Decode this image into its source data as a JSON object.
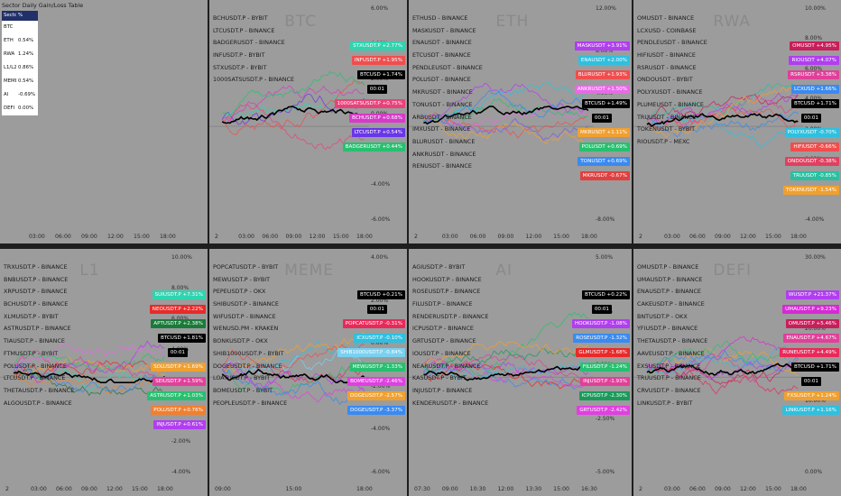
{
  "table": {
    "title": "Sector Daily Gain/Loss Table",
    "headers": [
      "Sector",
      "% Change"
    ],
    "rows": [
      {
        "sector": "BTC",
        "change": ""
      },
      {
        "sector": "ETH",
        "change": "0.54%"
      },
      {
        "sector": "RWA",
        "change": "1.24%"
      },
      {
        "sector": "L1/L2",
        "change": "0.86%"
      },
      {
        "sector": "MEME",
        "change": "0.54%"
      },
      {
        "sector": "AI",
        "change": "-0.69%"
      },
      {
        "sector": "DEFI",
        "change": "0.00%"
      }
    ]
  },
  "left_time_axis": [
    "03:00",
    "06:00",
    "09:00",
    "12:00",
    "15:00",
    "18:00"
  ],
  "panels": [
    {
      "id": "btc",
      "watermark": "BTC",
      "symbols": [
        "BCHUSDT.P - BYBIT",
        "LTCUSDT.P - BINANCE",
        "BADGERUSDT - BINANCE",
        "INFUSDT.P - BYBIT",
        "STXUSDT.P - BYBIT",
        "1000SATSUSDT.P - BINANCE"
      ],
      "yticks": [
        "6.00%",
        "4.00%",
        "2.00%",
        "0.00%",
        "-2.00%",
        "-4.00%",
        "-6.00%"
      ],
      "xticks": [
        "2",
        "03:00",
        "06:00",
        "09:00",
        "12:00",
        "15:00",
        "18:00"
      ],
      "badges": [
        {
          "label": "STXUSDT.P",
          "value": "+2.77%",
          "color": "#2fd4b0"
        },
        {
          "label": "INFUSDT.P",
          "value": "+1.95%",
          "color": "#f04e4e"
        },
        {
          "label": "BTCUSD",
          "value": "+1.74%",
          "color": "#000000"
        },
        {
          "label": "",
          "value": "00:01",
          "color": "#000000"
        },
        {
          "label": "1000SATSUSDT.P",
          "value": "+0.75%",
          "color": "#e8427a"
        },
        {
          "label": "BCHUSDT.P",
          "value": "+0.68%",
          "color": "#d63ac8"
        },
        {
          "label": "LTCUSDT.P",
          "value": "+0.54%",
          "color": "#6a36e8"
        },
        {
          "label": "BADGERUSDT",
          "value": "+0.44%",
          "color": "#28c070"
        }
      ],
      "colors": [
        "#2fd4b0",
        "#f04e4e",
        "#e8427a",
        "#d63ac8",
        "#6a36e8",
        "#28c070"
      ]
    },
    {
      "id": "eth",
      "watermark": "ETH",
      "symbols": [
        "ETHUSD - BINANCE",
        "MASKUSDT - BINANCE",
        "ENAUSDT - BINANCE",
        "ETCUSDT - BINANCE",
        "PENDLEUSDT - BINANCE",
        "POLUSDT - BINANCE",
        "MKRUSDT - BINANCE",
        "TONUSDT - BINANCE",
        "ARBUSDT - BINANCE",
        "IMXUSDT - BINANCE",
        "BLURUSDT - BINANCE",
        "ANKRUSDT - BINANCE",
        "RENUSDT - BINANCE"
      ],
      "yticks": [
        "12.00%",
        "8.00%",
        "4.00%",
        "0.00%",
        "-4.00%",
        "-8.00%"
      ],
      "xticks": [
        "2",
        "03:00",
        "06:00",
        "09:00",
        "12:00",
        "15:00",
        "18:00"
      ],
      "badges": [
        {
          "label": "MASKUSDT",
          "value": "+3.91%",
          "color": "#b13ef0"
        },
        {
          "label": "ENAUSDT",
          "value": "+2.00%",
          "color": "#2ec0e0"
        },
        {
          "label": "BLURUSDT",
          "value": "+1.93%",
          "color": "#f04e4e"
        },
        {
          "label": "ANKRUSDT",
          "value": "+1.50%",
          "color": "#e86ae8"
        },
        {
          "label": "BTCUSD",
          "value": "+1.49%",
          "color": "#000000"
        },
        {
          "label": "",
          "value": "00:01",
          "color": "#000000"
        },
        {
          "label": "MKRUSDT",
          "value": "+1.11%",
          "color": "#f0a030"
        },
        {
          "label": "POLUSDT",
          "value": "+0.69%",
          "color": "#28c070"
        },
        {
          "label": "TONUSDT",
          "value": "+0.69%",
          "color": "#3a8af0"
        },
        {
          "label": "MKRUSDT",
          "value": "-0.67%",
          "color": "#e04040"
        }
      ],
      "colors": [
        "#b13ef0",
        "#2ec0e0",
        "#f04e4e",
        "#e86ae8",
        "#f0a030",
        "#28c070",
        "#3a8af0",
        "#7a5af0"
      ]
    },
    {
      "id": "rwa",
      "watermark": "RWA",
      "symbols": [
        "OMUSDT - BINANCE",
        "LCXUSD - COINBASE",
        "PENDLEUSDT - BINANCE",
        "HIFIUSDT - BINANCE",
        "RSRUSDT - BINANCE",
        "ONDOUSDT - BYBIT",
        "POLYXUSDT - BINANCE",
        "PLUMEUSDT - BINANCE",
        "TRUUSDT - BINANCE",
        "TOKENUSDT - BYBIT",
        "RIOUSDT.P - MEXC"
      ],
      "yticks": [
        "10.00%",
        "8.00%",
        "6.00%",
        "4.00%",
        "2.00%",
        "0.00%",
        "-2.00%",
        "-4.00%"
      ],
      "xticks": [
        "2",
        "03:00",
        "06:00",
        "09:00",
        "12:00",
        "15:00",
        "18:00"
      ],
      "badges": [
        {
          "label": "OMUSDT",
          "value": "+4.95%",
          "color": "#c81e5a"
        },
        {
          "label": "RIOUSDT",
          "value": "+4.07%",
          "color": "#b13ef0"
        },
        {
          "label": "RSRUSDT",
          "value": "+3.38%",
          "color": "#e0409a"
        },
        {
          "label": "LCXUSD",
          "value": "+1.66%",
          "color": "#3a8af0"
        },
        {
          "label": "BTCUSD",
          "value": "+1.71%",
          "color": "#000000"
        },
        {
          "label": "",
          "value": "00:01",
          "color": "#000000"
        },
        {
          "label": "POLYXUSDT",
          "value": "-0.70%",
          "color": "#2ec0e0"
        },
        {
          "label": "HIFIUSDT",
          "value": "-0.66%",
          "color": "#f04e4e"
        },
        {
          "label": "ONDOUSDT",
          "value": "-0.38%",
          "color": "#e04060"
        },
        {
          "label": "TRUUSDT",
          "value": "-0.85%",
          "color": "#28c0a0"
        },
        {
          "label": "TOKENUSDT",
          "value": "-1.54%",
          "color": "#f0a030"
        }
      ],
      "colors": [
        "#c81e5a",
        "#b13ef0",
        "#e0409a",
        "#3a8af0",
        "#2ec0e0",
        "#f04e4e",
        "#28c0a0",
        "#f0a030"
      ]
    },
    {
      "id": "l1",
      "watermark": "L1",
      "symbols": [
        "TRXUSDT.P - BINANCE",
        "BNBUSDT.P - BINANCE",
        "XRPUSDT.P - BINANCE",
        "BCHUSDT.P - BINANCE",
        "XLMUSDT.P - BYBIT",
        "ASTRUSDT.P - BINANCE",
        "TIAUSDT.P - BINANCE",
        "FTMUSDT.P - BYBIT",
        "POLUSDT.P - BINANCE",
        "LTCUSDT.P - BINANCE",
        "THETAUSDT.P - BINANCE",
        "ALGOUSDT.P - BINANCE"
      ],
      "yticks": [
        "10.00%",
        "8.00%",
        "6.00%",
        "4.00%",
        "2.00%",
        "0.00%",
        "-2.00%",
        "-4.00%"
      ],
      "xticks": [
        "2",
        "03:00",
        "06:00",
        "09:00",
        "12:00",
        "15:00",
        "18:00"
      ],
      "badges": [
        {
          "label": "SUIUSDT.P",
          "value": "+7.31%",
          "color": "#2fd4b0"
        },
        {
          "label": "NEOUSDT.P",
          "value": "+2.22%",
          "color": "#e82a2a"
        },
        {
          "label": "APTUSDT.P",
          "value": "+2.38%",
          "color": "#1a7a3a"
        },
        {
          "label": "BTCUSD",
          "value": "+1.81%",
          "color": "#000000"
        },
        {
          "label": "",
          "value": "00:01",
          "color": "#000000"
        },
        {
          "label": "SOLUSDT.P",
          "value": "+1.69%",
          "color": "#f0a030"
        },
        {
          "label": "SEIUSDT.P",
          "value": "+1.59%",
          "color": "#e0409a"
        },
        {
          "label": "ASTRUSDT.P",
          "value": "+1.03%",
          "color": "#28c070"
        },
        {
          "label": "POLUSDT.P",
          "value": "+0.76%",
          "color": "#f08030"
        },
        {
          "label": "INJUSDT.P",
          "value": "+0.61%",
          "color": "#b13ef0"
        }
      ],
      "colors": [
        "#2fd4b0",
        "#e82a2a",
        "#1a7a3a",
        "#f0a030",
        "#e0409a",
        "#28c070",
        "#f08030",
        "#b13ef0",
        "#3a8af0",
        "#e86ae8"
      ]
    },
    {
      "id": "meme",
      "watermark": "MEME",
      "symbols": [
        "POPCATUSDT.P - BYBIT",
        "MEWUSDT.P - BYBIT",
        "PEPEUSDT.P - OKX",
        "SHIBUSDT.P - BINANCE",
        "WIFUSDT.P - BINANCE",
        "WENUSD.PM - KRAKEN",
        "BONKUSDT.P - OKX",
        "SHIB1000USDT.P - BYBIT",
        "DOGEUSDT.P - BINANCE",
        "LOATUSDT.P - BYBIT",
        "BOMEUSDT.P - BYBIT",
        "PEOPLEUSDT.P - BINANCE"
      ],
      "yticks": [
        "4.00%",
        "2.00%",
        "0.00%",
        "-2.00%",
        "-4.00%",
        "-6.00%"
      ],
      "xticks": [
        "09:00",
        "15:00",
        "18:00"
      ],
      "badges": [
        {
          "label": "BTCUSD",
          "value": "+0.21%",
          "color": "#000000"
        },
        {
          "label": "",
          "value": "00:01",
          "color": "#000000"
        },
        {
          "label": "POPCATUSDT.P",
          "value": "-0.31%",
          "color": "#e82a5a"
        },
        {
          "label": "ICXUSDT.P",
          "value": "-0.10%",
          "color": "#2ec0e0"
        },
        {
          "label": "SHIB1000USDT.P",
          "value": "-0.84%",
          "color": "#7ad0f0"
        },
        {
          "label": "MEWUSDT.P",
          "value": "-1.33%",
          "color": "#28c070"
        },
        {
          "label": "BOMEUSDT.P",
          "value": "-2.46%",
          "color": "#e040e0"
        },
        {
          "label": "DOGEUSDT.P",
          "value": "-2.57%",
          "color": "#f0a030"
        },
        {
          "label": "DOGEUSDT.P",
          "value": "-3.37%",
          "color": "#3a8af0"
        }
      ],
      "colors": [
        "#e82a5a",
        "#2ec0e0",
        "#7ad0f0",
        "#28c070",
        "#e040e0",
        "#f0a030",
        "#3a8af0",
        "#b13ef0",
        "#f04e4e"
      ]
    },
    {
      "id": "ai",
      "watermark": "AI",
      "symbols": [
        "AGIUSDT.P - BYBIT",
        "HOOKUSDT.P - BINANCE",
        "ROSEUSDT.P - BINANCE",
        "FILUSDT.P - BINANCE",
        "RENDERUSDT.P - BINANCE",
        "ICPUSDT.P - BINANCE",
        "GRTUSDT.P - BINANCE",
        "IOUSDT.P - BINANCE",
        "NEARUSDT.P - BINANCE",
        "KASUSDT.P - BYBIT",
        "INJUSDT.P - BINANCE",
        "KENDERUSDT.P - BINANCE"
      ],
      "yticks": [
        "5.00%",
        "2.50%",
        "0.00%",
        "-2.50%",
        "-5.00%"
      ],
      "xticks": [
        "07:30",
        "09:00",
        "10:30",
        "12:00",
        "13:30",
        "15:00",
        "16:30"
      ],
      "badges": [
        {
          "label": "BTCUSD",
          "value": "+0.22%",
          "color": "#000000"
        },
        {
          "label": "",
          "value": "00:01",
          "color": "#000000"
        },
        {
          "label": "HOOKUSDT.P",
          "value": "-1.08%",
          "color": "#b13ef0"
        },
        {
          "label": "ROSEUSDT.P",
          "value": "-1.32%",
          "color": "#3a8af0"
        },
        {
          "label": "GLMUSDT.P",
          "value": "-1.68%",
          "color": "#e82a2a"
        },
        {
          "label": "FILUSDT.P",
          "value": "-1.24%",
          "color": "#28c070"
        },
        {
          "label": "INJUSDT.P",
          "value": "-1.93%",
          "color": "#e0409a"
        },
        {
          "label": "ICPUSDT.P",
          "value": "-2.30%",
          "color": "#1a9a5a"
        },
        {
          "label": "GRTUSDT.P",
          "value": "-2.42%",
          "color": "#e040e0"
        }
      ],
      "colors": [
        "#b13ef0",
        "#3a8af0",
        "#e82a2a",
        "#28c070",
        "#e0409a",
        "#1a9a5a",
        "#e040e0",
        "#f0a030",
        "#2ec0e0"
      ]
    },
    {
      "id": "defi",
      "watermark": "DEFI",
      "symbols": [
        "OMUSDT.P - BINANCE",
        "UMAUSDT.P - BINANCE",
        "ENAUSDT.P - BINANCE",
        "CAKEUSDT.P - BINANCE",
        "BNTUSDT.P - OKX",
        "YFIUSDT.P - BINANCE",
        "THETAUSDT.P - BINANCE",
        "AAVEUSDT.P - BINANCE",
        "EXSUSDT.P - BINANCE",
        "TRUUSDT.P - BINANCE",
        "CRVUSDT.P - BINANCE",
        "LINKUSDT.P - BYBIT"
      ],
      "yticks": [
        "30.00%",
        "20.00%",
        "10.00%",
        "0.00%"
      ],
      "xticks": [
        "2",
        "03:00",
        "06:00",
        "09:00",
        "12:00",
        "15:00",
        "18:00"
      ],
      "badges": [
        {
          "label": "WUSDT.P",
          "value": "+21.37%",
          "color": "#b13ef0"
        },
        {
          "label": "UMAUSDT.P",
          "value": "+9.23%",
          "color": "#d62ad6"
        },
        {
          "label": "OMUSDT.P",
          "value": "+5.46%",
          "color": "#c81e5a"
        },
        {
          "label": "ENAUSDT.P",
          "value": "+4.67%",
          "color": "#e0409a"
        },
        {
          "label": "RUNEUSDT.P",
          "value": "+4.49%",
          "color": "#e82a5a"
        },
        {
          "label": "BTCUSD",
          "value": "+1.71%",
          "color": "#000000"
        },
        {
          "label": "",
          "value": "00:01",
          "color": "#000000"
        },
        {
          "label": "FXSUSDT.P",
          "value": "+1.24%",
          "color": "#f0a030"
        },
        {
          "label": "LINKUSDT.P",
          "value": "+1.16%",
          "color": "#2ec0e0"
        }
      ],
      "colors": [
        "#b13ef0",
        "#d62ad6",
        "#c81e5a",
        "#e0409a",
        "#e82a5a",
        "#f0a030",
        "#2ec0e0",
        "#3a8af0",
        "#28c070"
      ]
    }
  ]
}
